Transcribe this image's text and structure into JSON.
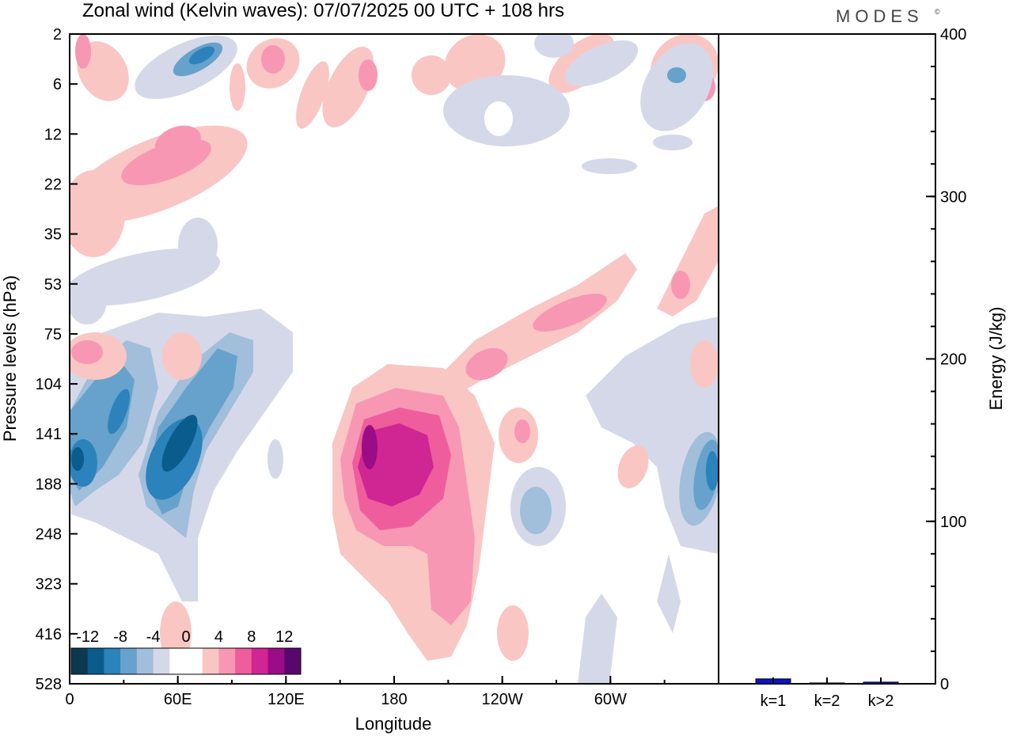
{
  "header": {
    "title": "Zonal wind (Kelvin waves):  07/07/2025  00 UTC  + 108 hrs",
    "brand": "MODES",
    "brand_mark": "©"
  },
  "chart_data": [
    {
      "type": "heatmap",
      "title": "Zonal wind (Kelvin waves):  07/07/2025  00 UTC  + 108 hrs",
      "xlabel": "Longitude",
      "ylabel": "Pressure levels (hPa)",
      "x_ticks": [
        "0",
        "60E",
        "120E",
        "180",
        "120W",
        "60W"
      ],
      "x_tick_degrees": [
        0,
        60,
        120,
        180,
        240,
        300
      ],
      "x_range": [
        0,
        360
      ],
      "y_ticks": [
        "2",
        "6",
        "12",
        "22",
        "35",
        "53",
        "75",
        "104",
        "141",
        "188",
        "248",
        "323",
        "416",
        "528"
      ],
      "colorbar": {
        "labels": [
          "-12",
          "-8",
          "-4",
          "0",
          "4",
          "8",
          "12"
        ],
        "colors": [
          "#0b3950",
          "#0a5c8c",
          "#2c82bb",
          "#66a2cc",
          "#a1bedb",
          "#d5d8e8",
          "#ffffff",
          "#ffffff",
          "#f9c6c3",
          "#f797b4",
          "#ef5d9c",
          "#cf2693",
          "#9c0c86",
          "#5a066f"
        ]
      },
      "features": [
        {
          "lon": 172,
          "level": "141",
          "u": 12,
          "note": "positive max"
        },
        {
          "lon": 52,
          "level": "141",
          "u": -12
        },
        {
          "lon": 20,
          "level": "141",
          "u": -10
        },
        {
          "lon": 357,
          "level": "188",
          "u": -10
        },
        {
          "lon": 235,
          "level": "248",
          "u": -4
        }
      ]
    },
    {
      "type": "bar",
      "categories": [
        "k=1",
        "k=2",
        "k>2"
      ],
      "values": [
        3,
        0.5,
        1
      ],
      "ylabel": "Energy (J/kg)",
      "ylim": [
        0,
        400
      ],
      "y_ticks": [
        "0",
        "100",
        "200",
        "300",
        "400"
      ],
      "bar_colors": [
        "#0a14c8",
        "#0a14c8",
        "#0a14c8"
      ]
    }
  ]
}
